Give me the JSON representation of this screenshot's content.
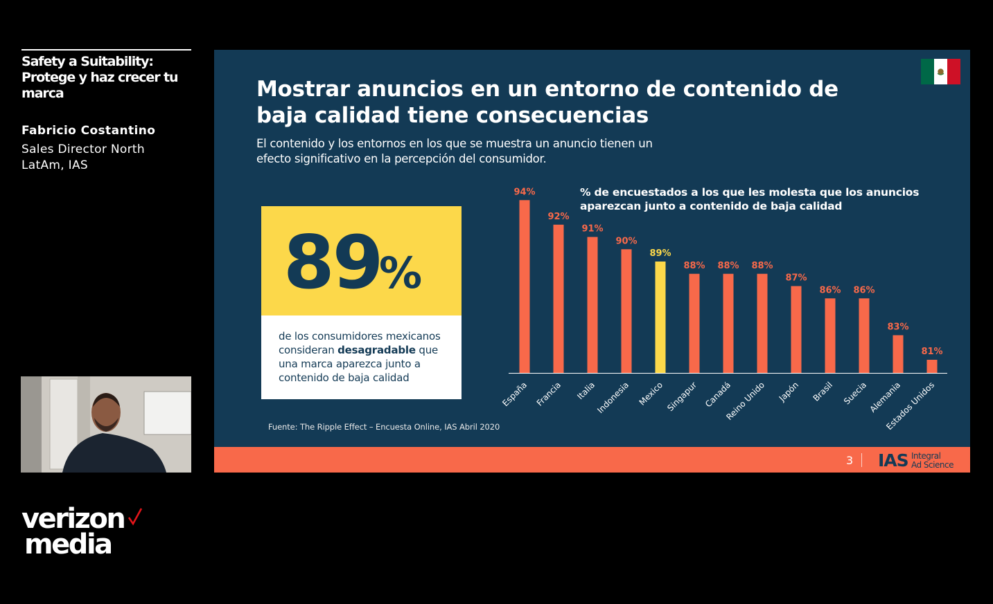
{
  "sidebar": {
    "session_title": "Safety a Suitability: Protege y haz crecer tu marca",
    "speaker_name": "Fabricio Costantino",
    "speaker_role": "Sales Director North LatAm, IAS"
  },
  "brand": {
    "line1": "verizon",
    "line2": "media"
  },
  "slide": {
    "flag_colors": [
      "#006847",
      "#ffffff",
      "#ce1126"
    ],
    "title": "Mostrar anuncios en un entorno de contenido de baja calidad tiene consecuencias",
    "subtitle": "El contenido y los entornos en los que se muestra un anuncio tienen un efecto significativo en la percepción del consumidor.",
    "stat": {
      "number": "89",
      "percent": "%",
      "desc_before": "de los consumidores mexicanos consideran ",
      "desc_bold": "desagradable",
      "desc_after": " que una marca aparezca junto a contenido de baja calidad"
    },
    "source": "Fuente: The Ripple Effect – Encuesta Online, IAS Abril 2020",
    "page_number": "3",
    "footer_logo": "IAS",
    "footer_logo_line1": "Integral",
    "footer_logo_line2": "Ad Science",
    "colors": {
      "background": "#133a55",
      "bar": "#f8694a",
      "highlight": "#fcd84a",
      "footer": "#f8694a"
    }
  },
  "chart_data": {
    "type": "bar",
    "title": "% de encuestados a los que les molesta que los anuncios aparezcan junto a contenido de baja calidad",
    "categories": [
      "España",
      "Francia",
      "Italia",
      "Indonesia",
      "Mexico",
      "Singapur",
      "Canadá",
      "Reino Unido",
      "Japón",
      "Brasil",
      "Suecia",
      "Alemania",
      "Estados Unidos"
    ],
    "values": [
      94,
      92,
      91,
      90,
      89,
      88,
      88,
      88,
      87,
      86,
      86,
      83,
      81
    ],
    "labels": [
      "94%",
      "92%",
      "91%",
      "90%",
      "89%",
      "88%",
      "88%",
      "88%",
      "87%",
      "86%",
      "86%",
      "83%",
      "81%"
    ],
    "highlight_category": "Mexico",
    "grid": false,
    "legend": "none"
  }
}
